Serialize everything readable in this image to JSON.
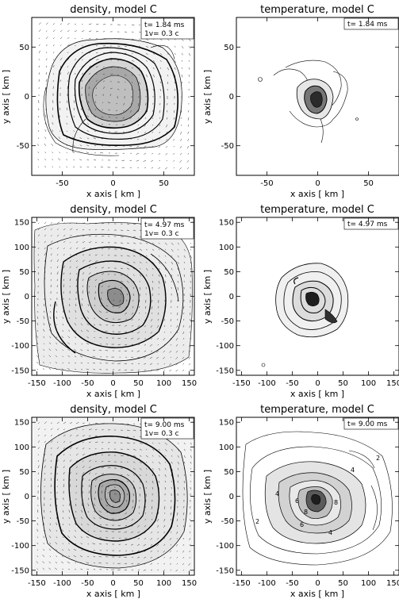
{
  "panels": [
    {
      "id": "density-1",
      "title": "density, model C",
      "time_label": "t= 1.84 ms",
      "velocity_label": "1v= 0.3 c",
      "xlabel": "x axis [ km ]",
      "ylabel": "y axis [ km ]",
      "xlim": [
        -80,
        80
      ],
      "ylim": [
        -80,
        80
      ],
      "xticks": [
        "-50",
        "0",
        "50"
      ],
      "xtick_values": [
        -50,
        0,
        50
      ],
      "yticks": [
        "-50",
        "0",
        "50"
      ],
      "ytick_values": [
        -50,
        0,
        50
      ]
    },
    {
      "id": "temperature-1",
      "title": "temperature, model C",
      "time_label": "t= 1.84 ms",
      "velocity_label": "",
      "xlabel": "x axis [ km ]",
      "ylabel": "y axis [ km ]",
      "xlim": [
        -80,
        80
      ],
      "ylim": [
        -80,
        80
      ],
      "xticks": [
        "-50",
        "0",
        "50"
      ],
      "xtick_values": [
        -50,
        0,
        50
      ],
      "yticks": [
        "-50",
        "0",
        "50"
      ],
      "ytick_values": [
        -50,
        0,
        50
      ]
    },
    {
      "id": "density-2",
      "title": "density, model C",
      "time_label": "t= 4.97 ms",
      "velocity_label": "1v= 0.3 c",
      "xlabel": "x axis [ km ]",
      "ylabel": "y axis [ km ]",
      "xlim": [
        -160,
        160
      ],
      "ylim": [
        -160,
        160
      ],
      "xticks": [
        "-150",
        "-100",
        "-50",
        "0",
        "50",
        "100",
        "150"
      ],
      "xtick_values": [
        -150,
        -100,
        -50,
        0,
        50,
        100,
        150
      ],
      "yticks": [
        "-150",
        "-100",
        "-50",
        "0",
        "50",
        "100",
        "150"
      ],
      "ytick_values": [
        -150,
        -100,
        -50,
        0,
        50,
        100,
        150
      ]
    },
    {
      "id": "temperature-2",
      "title": "temperature, model C",
      "time_label": "t= 4.97 ms",
      "velocity_label": "",
      "xlabel": "x axis [ km ]",
      "ylabel": "y axis [ km ]",
      "xlim": [
        -160,
        160
      ],
      "ylim": [
        -160,
        160
      ],
      "xticks": [
        "-150",
        "-100",
        "-50",
        "0",
        "50",
        "100",
        "150"
      ],
      "xtick_values": [
        -150,
        -100,
        -50,
        0,
        50,
        100,
        150
      ],
      "yticks": [
        "-150",
        "-100",
        "-50",
        "0",
        "50",
        "100",
        "150"
      ],
      "ytick_values": [
        -150,
        -100,
        -50,
        0,
        50,
        100,
        150
      ]
    },
    {
      "id": "density-3",
      "title": "density, model C",
      "time_label": "t= 9.00 ms",
      "velocity_label": "1v= 0.3 c",
      "xlabel": "x axis [ km ]",
      "ylabel": "y axis [ km ]",
      "xlim": [
        -160,
        160
      ],
      "ylim": [
        -160,
        160
      ],
      "xticks": [
        "-150",
        "-100",
        "-50",
        "0",
        "50",
        "100",
        "150"
      ],
      "xtick_values": [
        -150,
        -100,
        -50,
        0,
        50,
        100,
        150
      ],
      "yticks": [
        "-150",
        "-100",
        "-50",
        "0",
        "50",
        "100",
        "150"
      ],
      "ytick_values": [
        -150,
        -100,
        -50,
        0,
        50,
        100,
        150
      ]
    },
    {
      "id": "temperature-3",
      "title": "temperature, model C",
      "time_label": "t= 9.00 ms",
      "velocity_label": "",
      "xlabel": "x axis [ km ]",
      "ylabel": "y axis [ km ]",
      "xlim": [
        -160,
        160
      ],
      "ylim": [
        -160,
        160
      ],
      "xticks": [
        "-150",
        "-100",
        "-50",
        "0",
        "50",
        "100",
        "150"
      ],
      "xtick_values": [
        -150,
        -100,
        -50,
        0,
        50,
        100,
        150
      ],
      "yticks": [
        "-150",
        "-100",
        "-50",
        "0",
        "50",
        "100",
        "150"
      ],
      "ytick_values": [
        -150,
        -100,
        -50,
        0,
        50,
        100,
        150
      ],
      "contour_labels": [
        "2",
        "2",
        "4",
        "4",
        "4",
        "6",
        "6",
        "8",
        "8"
      ]
    }
  ],
  "colors": {
    "axis": "#000000",
    "fill_light": "#ececec",
    "fill_mid": "#c8c8c8",
    "fill_dark": "#a0a0a0"
  }
}
